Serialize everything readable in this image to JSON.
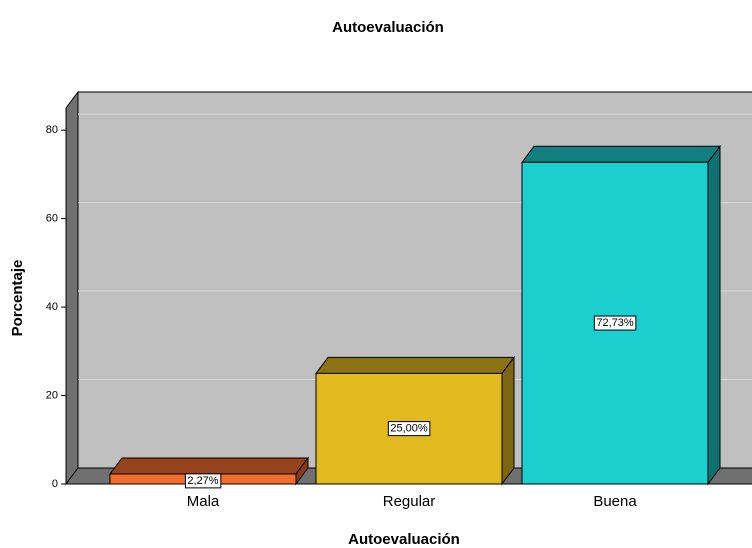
{
  "chart_data": {
    "type": "bar3d",
    "title": "Autoevaluación",
    "x_label": "Autoevaluación",
    "y_label": "Porcentaje",
    "categories": [
      "Mala",
      "Regular",
      "Buena"
    ],
    "values": [
      2.27,
      25.0,
      72.73
    ],
    "value_labels": [
      "2,27%",
      "25,00%",
      "72,73%"
    ],
    "colors": [
      "#f26b2f",
      "#e0ba1e",
      "#1ccfcf"
    ],
    "ylim": [
      0,
      85
    ],
    "yticks": [
      0,
      20,
      40,
      60,
      80
    ],
    "grid": true
  }
}
